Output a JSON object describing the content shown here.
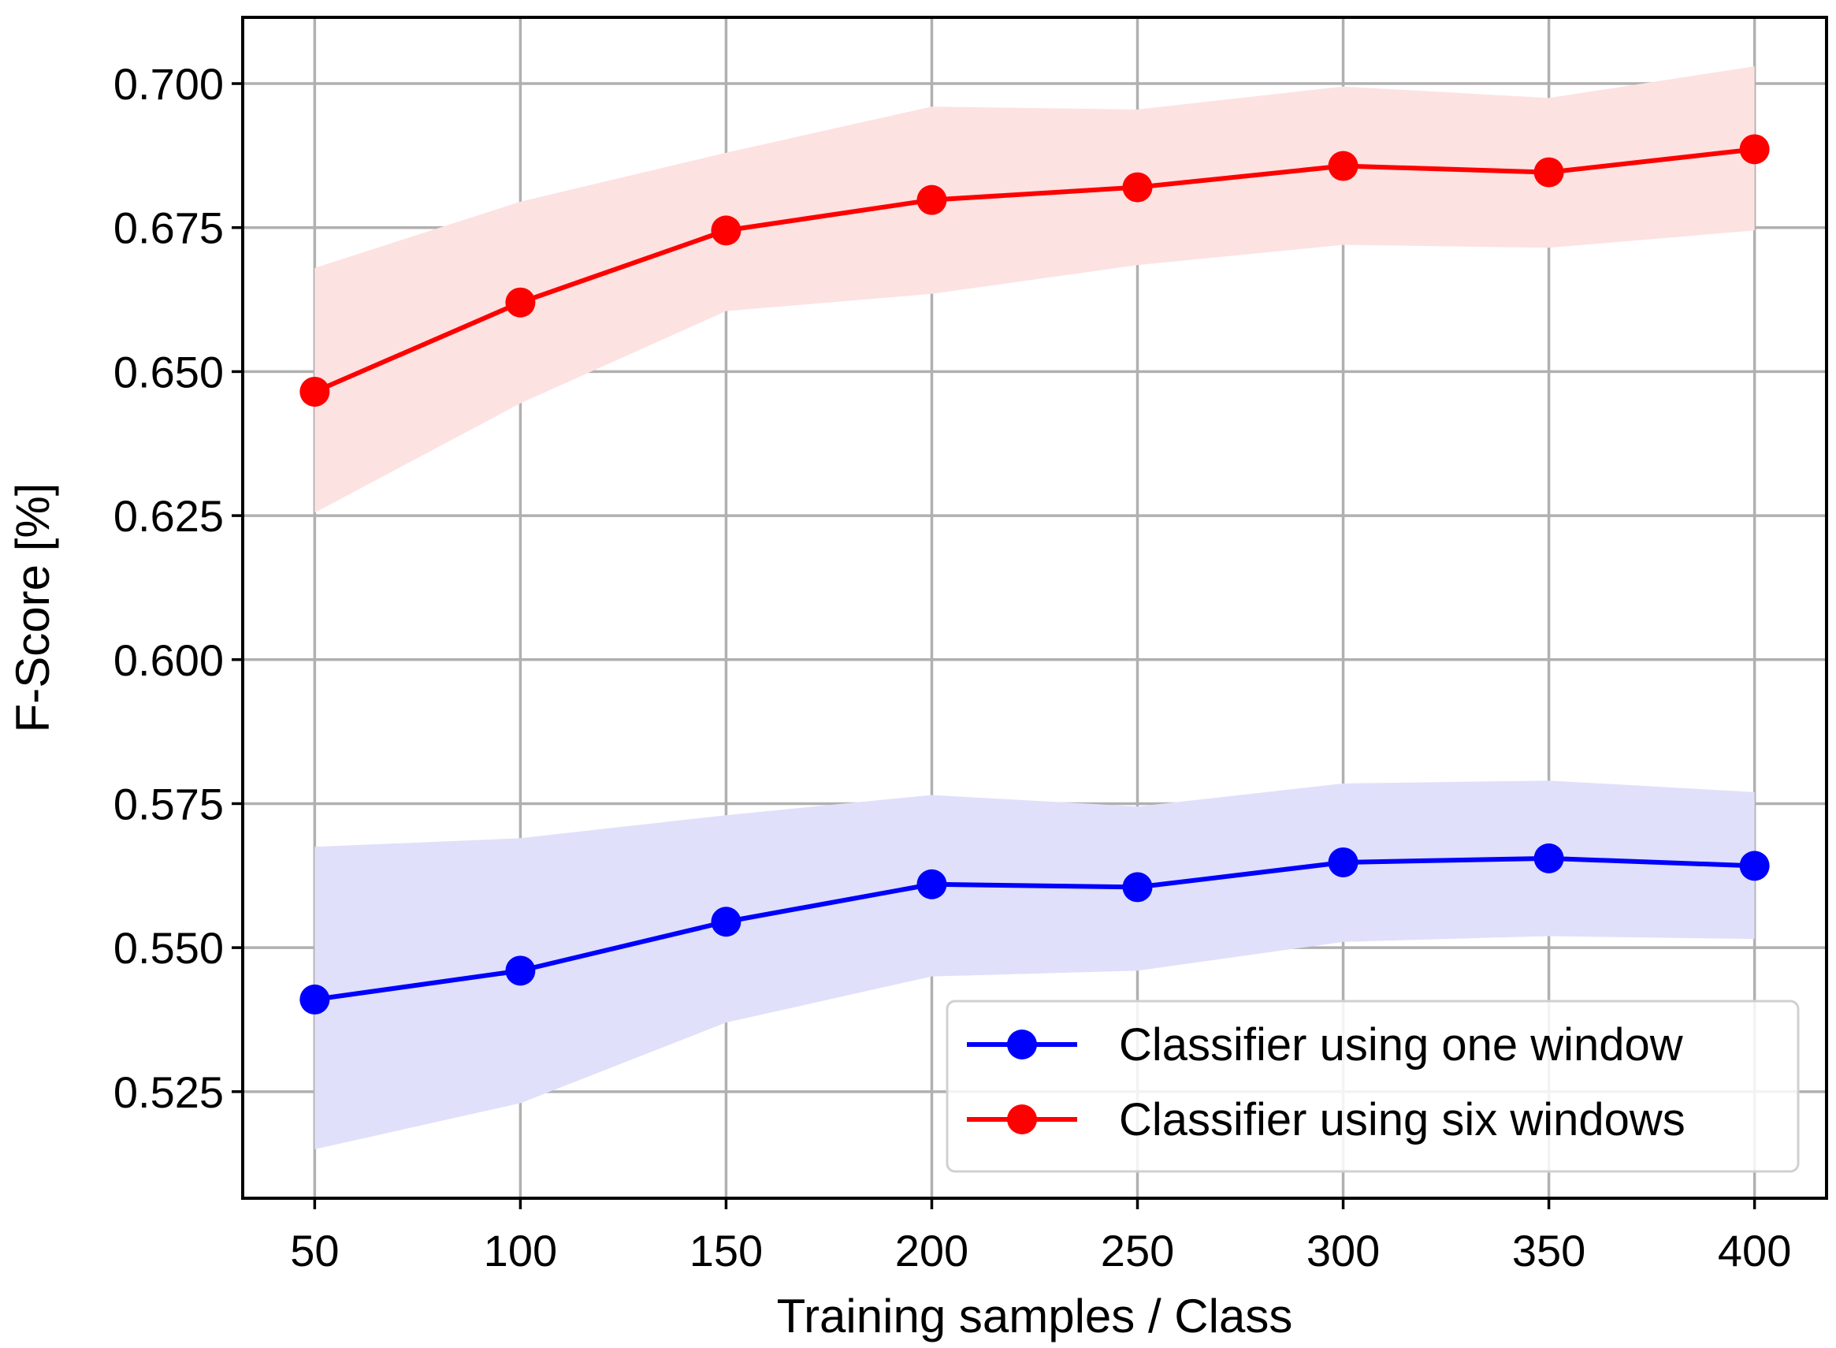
{
  "chart_data": {
    "type": "line",
    "title": "",
    "xlabel": "Training samples / Class",
    "ylabel": "F-Score [%]",
    "x": [
      50,
      100,
      150,
      200,
      250,
      300,
      350,
      400
    ],
    "xticks": [
      "50",
      "100",
      "150",
      "200",
      "250",
      "300",
      "350",
      "400"
    ],
    "yticks": [
      "0.525",
      "0.550",
      "0.575",
      "0.600",
      "0.625",
      "0.650",
      "0.675",
      "0.700"
    ],
    "ytick_values": [
      0.525,
      0.55,
      0.575,
      0.6,
      0.625,
      0.65,
      0.675,
      0.7
    ],
    "xlim": [
      32.5,
      417.5
    ],
    "ylim": [
      0.5065,
      0.7115
    ],
    "grid": true,
    "legend_position": "lower-right",
    "series": [
      {
        "name": "Classifier using one window",
        "color": "#0000ff",
        "band_color": "#e0e0fb",
        "values": [
          0.541,
          0.546,
          0.5545,
          0.561,
          0.5605,
          0.5648,
          0.5655,
          0.5642
        ],
        "lower": [
          0.515,
          0.523,
          0.537,
          0.545,
          0.546,
          0.551,
          0.552,
          0.5515
        ],
        "upper": [
          0.5675,
          0.569,
          0.573,
          0.5765,
          0.5745,
          0.5785,
          0.579,
          0.577
        ]
      },
      {
        "name": "Classifier using six windows",
        "color": "#ff0000",
        "band_color": "#fde2e2",
        "values": [
          0.6465,
          0.662,
          0.6745,
          0.6798,
          0.682,
          0.6857,
          0.6846,
          0.6886
        ],
        "lower": [
          0.6255,
          0.6445,
          0.6605,
          0.6635,
          0.6685,
          0.672,
          0.6715,
          0.6745
        ],
        "upper": [
          0.668,
          0.6795,
          0.688,
          0.696,
          0.6955,
          0.6995,
          0.6975,
          0.703
        ]
      }
    ]
  }
}
